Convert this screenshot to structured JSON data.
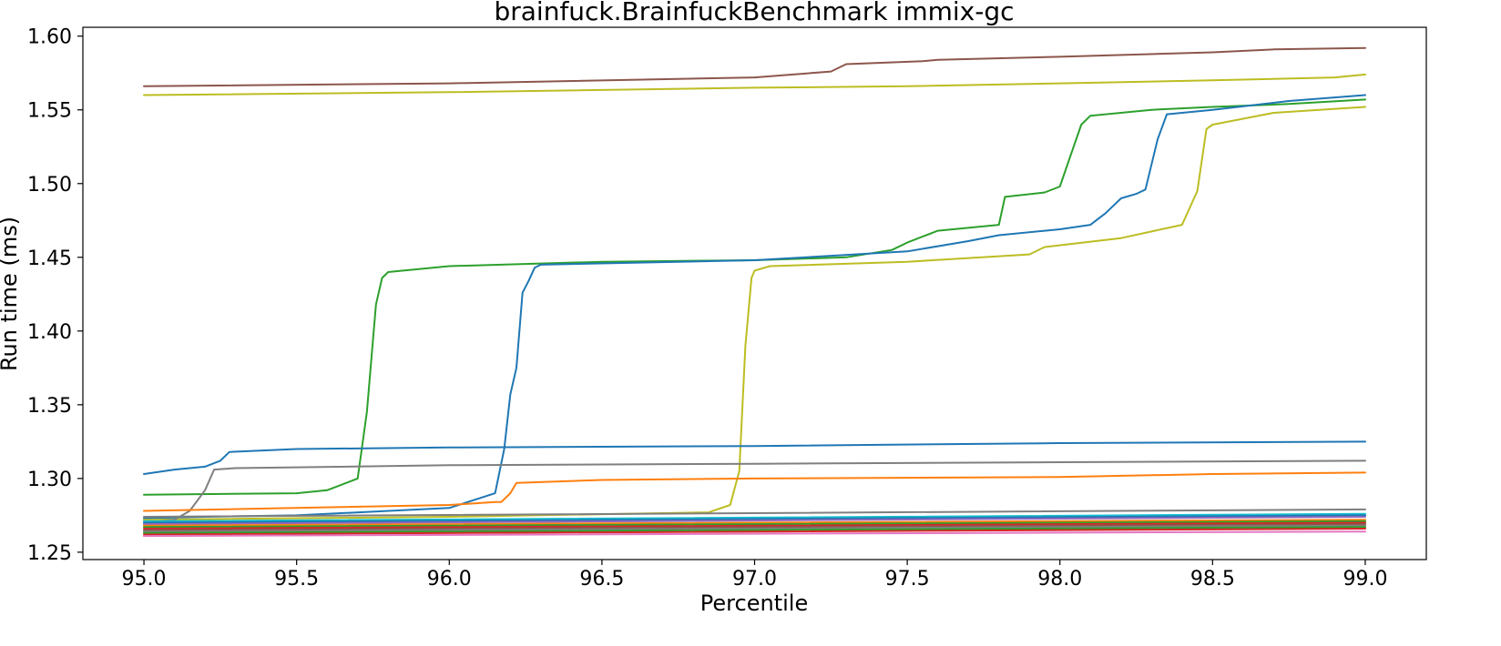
{
  "chart_data": {
    "type": "line",
    "title": "brainfuck.BrainfuckBenchmark immix-gc",
    "xlabel": "Percentile",
    "ylabel": "Run time (ms)",
    "xlim": [
      94.8,
      99.2
    ],
    "ylim": [
      1.245,
      1.606
    ],
    "xticks": [
      95.0,
      95.5,
      96.0,
      96.5,
      97.0,
      97.5,
      98.0,
      98.5,
      99.0
    ],
    "xtick_labels": [
      "95.0",
      "95.5",
      "96.0",
      "96.5",
      "97.0",
      "97.5",
      "98.0",
      "98.5",
      "99.0"
    ],
    "yticks": [
      1.25,
      1.3,
      1.35,
      1.4,
      1.45,
      1.5,
      1.55,
      1.6
    ],
    "ytick_labels": [
      "1.25",
      "1.30",
      "1.35",
      "1.40",
      "1.45",
      "1.50",
      "1.55",
      "1.60"
    ],
    "grid": false,
    "legend": "none",
    "series": [
      {
        "color": "#8c564b",
        "x": [
          95.0,
          96.0,
          97.0,
          97.25,
          97.3,
          97.55,
          97.6,
          98.0,
          98.5,
          98.7,
          99.0
        ],
        "y": [
          1.566,
          1.568,
          1.572,
          1.576,
          1.581,
          1.583,
          1.584,
          1.586,
          1.589,
          1.591,
          1.592
        ]
      },
      {
        "color": "#bcbd22",
        "x": [
          95.0,
          96.0,
          97.0,
          97.5,
          98.0,
          98.5,
          98.9,
          99.0
        ],
        "y": [
          1.56,
          1.562,
          1.565,
          1.566,
          1.568,
          1.57,
          1.572,
          1.574
        ]
      },
      {
        "color": "#2ca02c",
        "x": [
          95.0,
          95.5,
          95.6,
          95.7,
          95.73,
          95.76,
          95.78,
          95.8,
          96.0,
          96.5,
          97.0,
          97.3,
          97.45,
          97.5,
          97.6,
          97.8,
          97.82,
          97.95,
          98.0,
          98.04,
          98.07,
          98.1,
          98.3,
          98.5,
          98.75,
          99.0
        ],
        "y": [
          1.289,
          1.29,
          1.292,
          1.3,
          1.345,
          1.418,
          1.436,
          1.44,
          1.444,
          1.447,
          1.448,
          1.45,
          1.455,
          1.46,
          1.468,
          1.472,
          1.491,
          1.494,
          1.498,
          1.522,
          1.54,
          1.546,
          1.55,
          1.552,
          1.554,
          1.557
        ]
      },
      {
        "color": "#1f77b4",
        "x": [
          95.0,
          95.2,
          95.5,
          96.0,
          96.15,
          96.18,
          96.2,
          96.22,
          96.24,
          96.26,
          96.28,
          96.3,
          97.0,
          97.5,
          97.7,
          97.8,
          98.0,
          98.1,
          98.15,
          98.2,
          98.25,
          98.28,
          98.32,
          98.35,
          98.5,
          98.75,
          99.0
        ],
        "y": [
          1.273,
          1.274,
          1.275,
          1.28,
          1.29,
          1.32,
          1.357,
          1.375,
          1.426,
          1.434,
          1.443,
          1.445,
          1.448,
          1.454,
          1.461,
          1.465,
          1.469,
          1.472,
          1.48,
          1.49,
          1.493,
          1.496,
          1.53,
          1.547,
          1.55,
          1.556,
          1.56
        ]
      },
      {
        "color": "#bcbd22",
        "x": [
          95.0,
          96.0,
          96.85,
          96.92,
          96.95,
          96.97,
          96.99,
          97.0,
          97.05,
          97.5,
          97.9,
          97.95,
          98.2,
          98.4,
          98.45,
          98.48,
          98.5,
          98.7,
          99.0
        ],
        "y": [
          1.272,
          1.274,
          1.277,
          1.282,
          1.305,
          1.39,
          1.436,
          1.441,
          1.444,
          1.447,
          1.452,
          1.457,
          1.463,
          1.472,
          1.495,
          1.537,
          1.54,
          1.548,
          1.552
        ]
      },
      {
        "color": "#1f77b4",
        "x": [
          95.0,
          95.1,
          95.2,
          95.25,
          95.28,
          95.5,
          96.0,
          97.0,
          98.0,
          99.0
        ],
        "y": [
          1.303,
          1.306,
          1.308,
          1.312,
          1.318,
          1.32,
          1.321,
          1.322,
          1.324,
          1.325
        ]
      },
      {
        "color": "#7f7f7f",
        "x": [
          95.0,
          95.1,
          95.15,
          95.2,
          95.23,
          95.3,
          96.0,
          97.0,
          98.0,
          99.0
        ],
        "y": [
          1.27,
          1.272,
          1.278,
          1.292,
          1.306,
          1.307,
          1.309,
          1.31,
          1.311,
          1.312
        ]
      },
      {
        "color": "#ff7f0e",
        "x": [
          95.0,
          96.0,
          96.15,
          96.17,
          96.2,
          96.22,
          96.5,
          97.0,
          98.0,
          98.5,
          99.0
        ],
        "y": [
          1.278,
          1.282,
          1.284,
          1.284,
          1.29,
          1.297,
          1.299,
          1.3,
          1.301,
          1.303,
          1.304
        ]
      },
      {
        "color": "#7f7f7f",
        "x": [
          95.0,
          99.0
        ],
        "y": [
          1.274,
          1.279
        ]
      },
      {
        "color": "#17becf",
        "x": [
          95.0,
          99.0
        ],
        "y": [
          1.271,
          1.276
        ]
      },
      {
        "color": "#1f77b4",
        "x": [
          95.0,
          99.0
        ],
        "y": [
          1.27,
          1.275
        ]
      },
      {
        "color": "#9467bd",
        "x": [
          95.0,
          99.0
        ],
        "y": [
          1.269,
          1.274
        ]
      },
      {
        "color": "#ff7f0e",
        "x": [
          95.0,
          99.0
        ],
        "y": [
          1.268,
          1.272
        ]
      },
      {
        "color": "#2ca02c",
        "x": [
          95.0,
          99.0
        ],
        "y": [
          1.267,
          1.271
        ]
      },
      {
        "color": "#d62728",
        "x": [
          95.0,
          99.0
        ],
        "y": [
          1.266,
          1.27
        ]
      },
      {
        "color": "#8c564b",
        "x": [
          95.0,
          99.0
        ],
        "y": [
          1.265,
          1.269
        ]
      },
      {
        "color": "#7f7f7f",
        "x": [
          95.0,
          99.0
        ],
        "y": [
          1.264,
          1.268
        ]
      },
      {
        "color": "#2ca02c",
        "x": [
          95.0,
          99.0
        ],
        "y": [
          1.263,
          1.267
        ]
      },
      {
        "color": "#d62728",
        "x": [
          95.0,
          99.0
        ],
        "y": [
          1.262,
          1.266
        ]
      },
      {
        "color": "#e377c2",
        "x": [
          95.0,
          99.0
        ],
        "y": [
          1.261,
          1.264
        ]
      }
    ]
  }
}
